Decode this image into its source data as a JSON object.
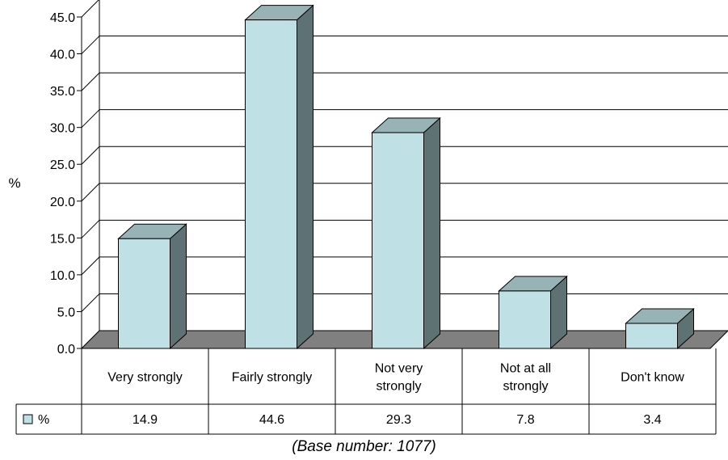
{
  "chart_data": {
    "type": "bar",
    "categories": [
      "Very strongly",
      "Fairly strongly",
      "Not very strongly",
      "Not at all strongly",
      "Don't know"
    ],
    "category_lines": [
      [
        "Very strongly"
      ],
      [
        "Fairly strongly"
      ],
      [
        "Not very",
        "strongly"
      ],
      [
        "Not at all",
        "strongly"
      ],
      [
        "Don't know"
      ]
    ],
    "series": [
      {
        "name": "%",
        "values": [
          14.9,
          44.6,
          29.3,
          7.8,
          3.4
        ]
      }
    ],
    "value_labels": [
      "14.9",
      "44.6",
      "29.3",
      "7.8",
      "3.4"
    ],
    "ylabel": "%",
    "ylim": [
      0,
      45
    ],
    "yticks": [
      "0.0",
      "5.0",
      "10.0",
      "15.0",
      "20.0",
      "25.0",
      "30.0",
      "35.0",
      "40.0",
      "45.0"
    ],
    "grid": true,
    "three_d": true,
    "data_table": true,
    "colors": {
      "bar_front": "#bfe1e5",
      "bar_side": "#5f7273",
      "bar_top": "#98b3b5",
      "floor": "#808080"
    }
  },
  "footnote": "(Base number: 1077)"
}
